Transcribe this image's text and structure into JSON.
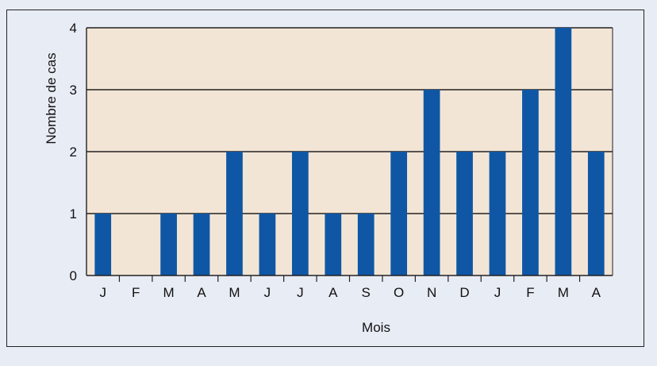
{
  "chart_data": {
    "type": "bar",
    "categories": [
      "J",
      "F",
      "M",
      "A",
      "M",
      "J",
      "J",
      "A",
      "S",
      "O",
      "N",
      "D",
      "J",
      "F",
      "M",
      "A"
    ],
    "values": [
      1,
      0,
      1,
      1,
      2,
      1,
      2,
      1,
      1,
      2,
      3,
      2,
      2,
      3,
      4,
      2
    ],
    "ylabel": "Nombre de cas",
    "xlabel": "Mois",
    "ylim": [
      0,
      4
    ],
    "yticks": [
      "0",
      "1",
      "2",
      "3",
      "4"
    ],
    "grid": true,
    "colors": {
      "bar": "#0f57a5",
      "plot_background": "#f3e5d5",
      "figure_background": "#e8ecf5",
      "frame": "#222222"
    }
  }
}
